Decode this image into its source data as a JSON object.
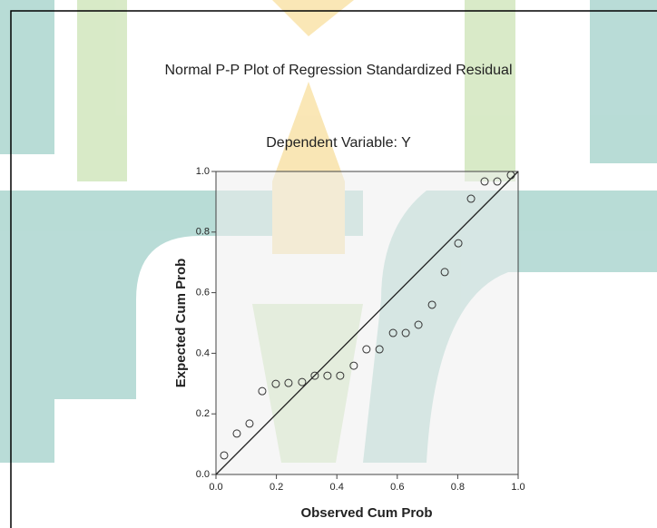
{
  "chart_data": {
    "type": "scatter",
    "title": "Normal P-P Plot of Regression Standardized Residual",
    "subtitle": "Dependent Variable: Y",
    "x_label": "Observed Cum Prob",
    "y_label": "Expected Cum Prob",
    "x": [
      0.027,
      0.069,
      0.111,
      0.153,
      0.198,
      0.24,
      0.285,
      0.327,
      0.369,
      0.411,
      0.456,
      0.498,
      0.541,
      0.586,
      0.628,
      0.67,
      0.715,
      0.757,
      0.802,
      0.844,
      0.889,
      0.931,
      0.976
    ],
    "values": [
      0.063,
      0.135,
      0.168,
      0.275,
      0.299,
      0.302,
      0.305,
      0.326,
      0.326,
      0.326,
      0.359,
      0.413,
      0.413,
      0.467,
      0.467,
      0.494,
      0.56,
      0.668,
      0.763,
      0.91,
      0.967,
      0.967,
      0.988
    ],
    "color": "#333333",
    "diagonal": true,
    "xlim": [
      0,
      1
    ],
    "ylim": [
      0,
      1
    ],
    "xticks": [
      {
        "value": 0,
        "label": "0.0"
      },
      {
        "value": 0.2,
        "label": "0.2"
      },
      {
        "value": 0.4,
        "label": "0.4"
      },
      {
        "value": 0.6,
        "label": "0.6"
      },
      {
        "value": 0.8,
        "label": "0.8"
      },
      {
        "value": 1,
        "label": "1.0"
      }
    ],
    "yticks": [
      {
        "value": 0,
        "label": "0.0"
      },
      {
        "value": 0.2,
        "label": "0.2"
      },
      {
        "value": 0.4,
        "label": "0.4"
      },
      {
        "value": 0.6,
        "label": "0.6"
      },
      {
        "value": 0.8,
        "label": "0.8"
      },
      {
        "value": 1,
        "label": "1.0"
      }
    ]
  }
}
